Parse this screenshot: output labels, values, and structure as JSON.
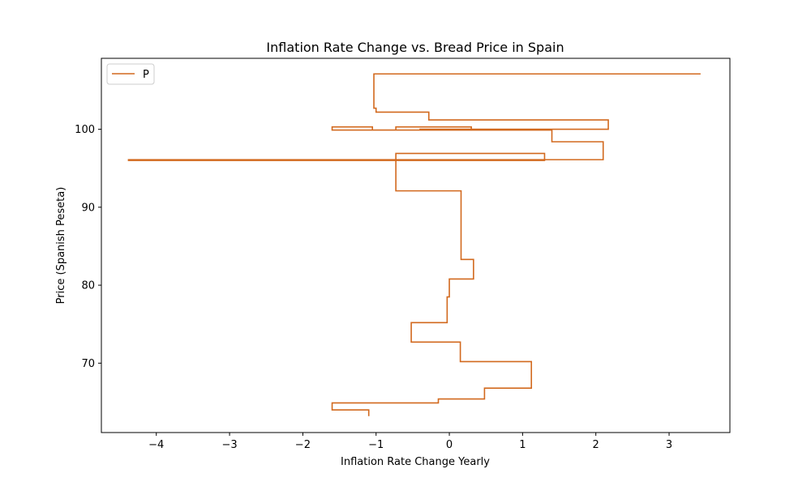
{
  "chart_data": {
    "type": "line",
    "drawstyle": "steps-post",
    "title": "Inflation Rate Change vs. Bread Price in Spain",
    "xlabel": "Inflation Rate Change Yearly",
    "ylabel": "Price (Spanish Peseta)",
    "xlim": [
      -4.75,
      3.83
    ],
    "ylim": [
      61.1,
      109.1
    ],
    "xticks": [
      -4,
      -3,
      -2,
      -1,
      0,
      1,
      2,
      3
    ],
    "xtick_labels": [
      "−4",
      "−3",
      "−2",
      "−1",
      "0",
      "1",
      "2",
      "3"
    ],
    "yticks": [
      70,
      80,
      90,
      100
    ],
    "ytick_labels": [
      "70",
      "80",
      "90",
      "100"
    ],
    "grid": false,
    "legend_position": "top-left",
    "series": [
      {
        "name": "P",
        "color": "#d2691e",
        "x": [
          -1.1,
          -1.1,
          -1.6,
          -1.6,
          -0.15,
          -0.15,
          0.48,
          0.48,
          1.12,
          1.12,
          0.15,
          0.15,
          -0.52,
          -0.52,
          -0.03,
          -0.03,
          0.0,
          0.0,
          0.33,
          0.33,
          0.16,
          0.16,
          -0.73,
          -0.73,
          1.3,
          1.3,
          -4.38,
          -4.38,
          2.1,
          2.1,
          1.4,
          1.4,
          -0.73,
          -0.73,
          0.3,
          0.3,
          -1.6,
          -1.6,
          -1.05,
          -1.05,
          -0.4,
          -0.4,
          2.17,
          2.17,
          -0.28,
          -0.28,
          -1.0,
          -1.0,
          -1.03,
          -1.03,
          3.43
        ],
        "y": [
          63.2,
          64.0,
          64.0,
          64.9,
          64.9,
          65.4,
          65.4,
          66.8,
          66.8,
          70.2,
          70.2,
          72.7,
          72.7,
          75.2,
          75.2,
          78.5,
          78.5,
          80.8,
          80.8,
          83.3,
          83.3,
          92.1,
          92.1,
          96.9,
          96.9,
          96.0,
          96.0,
          96.1,
          96.1,
          98.4,
          98.4,
          99.9,
          99.9,
          100.3,
          100.3,
          99.9,
          99.9,
          100.3,
          100.3,
          99.9,
          99.9,
          100.0,
          100.0,
          101.2,
          101.2,
          102.2,
          102.2,
          102.7,
          102.7,
          107.1,
          107.1
        ]
      }
    ]
  }
}
